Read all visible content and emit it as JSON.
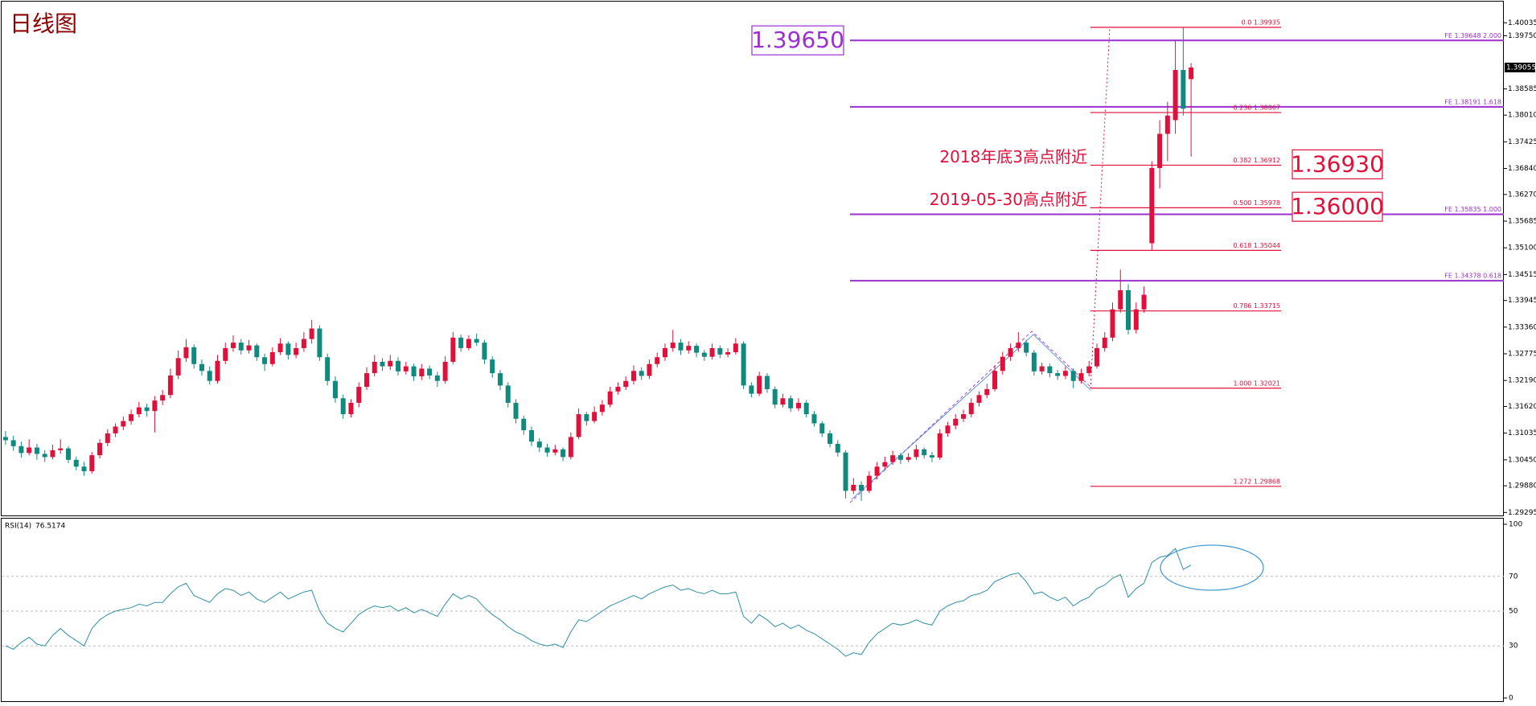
{
  "chart_data": [
    {
      "type": "candlestick",
      "title": "日线图",
      "up_color": "#e0103a",
      "down_color": "#10897e",
      "ylim": [
        1.2923,
        1.405
      ],
      "yticks": [
        1.40035,
        {
          "value": 1.3975,
          "label": "1.39750"
        },
        1.38585,
        {
          "value": 1.3801,
          "label": "1.38010"
        },
        1.37425,
        {
          "value": 1.3684,
          "label": "1.36840"
        },
        {
          "value": 1.3627,
          "label": "1.36270"
        },
        1.35685,
        {
          "value": 1.351,
          "label": "1.35100"
        },
        1.34515,
        1.33945,
        {
          "value": 1.3336,
          "label": "1.33360"
        },
        1.32775,
        {
          "value": 1.3219,
          "label": "1.32190"
        },
        {
          "value": 1.3162,
          "label": "1.31620"
        },
        1.31035,
        {
          "value": 1.3045,
          "label": "1.30450"
        },
        {
          "value": 1.2988,
          "label": "1.29880"
        },
        1.29295
      ],
      "ohlc": [
        [
          1.3095,
          1.3108,
          1.3078,
          1.3088
        ],
        [
          1.3088,
          1.3098,
          1.3065,
          1.3075
        ],
        [
          1.3075,
          1.3085,
          1.305,
          1.306
        ],
        [
          1.306,
          1.309,
          1.3055,
          1.3072
        ],
        [
          1.3072,
          1.308,
          1.3045,
          1.3058
        ],
        [
          1.3058,
          1.3066,
          1.304,
          1.3051
        ],
        [
          1.3051,
          1.3078,
          1.3046,
          1.3066
        ],
        [
          1.3066,
          1.309,
          1.3058,
          1.307
        ],
        [
          1.307,
          1.3075,
          1.3038,
          1.3045
        ],
        [
          1.3045,
          1.3052,
          1.3022,
          1.303
        ],
        [
          1.303,
          1.304,
          1.301,
          1.302
        ],
        [
          1.302,
          1.3062,
          1.3015,
          1.3055
        ],
        [
          1.3055,
          1.309,
          1.3048,
          1.3082
        ],
        [
          1.3082,
          1.3112,
          1.3075,
          1.3103
        ],
        [
          1.3103,
          1.3125,
          1.3095,
          1.3118
        ],
        [
          1.3118,
          1.314,
          1.311,
          1.313
        ],
        [
          1.313,
          1.3155,
          1.3122,
          1.3145
        ],
        [
          1.3145,
          1.3172,
          1.3138,
          1.316
        ],
        [
          1.316,
          1.3168,
          1.314,
          1.3152
        ],
        [
          1.3152,
          1.3185,
          1.3105,
          1.3175
        ],
        [
          1.3175,
          1.3198,
          1.3165,
          1.3187
        ],
        [
          1.3187,
          1.3245,
          1.318,
          1.323
        ],
        [
          1.323,
          1.3285,
          1.3222,
          1.3268
        ],
        [
          1.3268,
          1.331,
          1.326,
          1.3292
        ],
        [
          1.3292,
          1.3298,
          1.3245,
          1.3255
        ],
        [
          1.3255,
          1.3265,
          1.323,
          1.324
        ],
        [
          1.324,
          1.325,
          1.321,
          1.3218
        ],
        [
          1.3218,
          1.3275,
          1.3212,
          1.3262
        ],
        [
          1.3262,
          1.3302,
          1.3255,
          1.329
        ],
        [
          1.329,
          1.3318,
          1.3282,
          1.3302
        ],
        [
          1.3302,
          1.331,
          1.3276,
          1.3285
        ],
        [
          1.3285,
          1.3308,
          1.3278,
          1.3296
        ],
        [
          1.3296,
          1.33,
          1.3262,
          1.327
        ],
        [
          1.327,
          1.3278,
          1.324,
          1.3255
        ],
        [
          1.3255,
          1.3292,
          1.325,
          1.3281
        ],
        [
          1.3281,
          1.3312,
          1.3275,
          1.33
        ],
        [
          1.33,
          1.3305,
          1.3265,
          1.3275
        ],
        [
          1.3275,
          1.3302,
          1.3268,
          1.329
        ],
        [
          1.329,
          1.3325,
          1.3282,
          1.331
        ],
        [
          1.331,
          1.3352,
          1.33,
          1.3333
        ],
        [
          1.3333,
          1.334,
          1.3262,
          1.327
        ],
        [
          1.327,
          1.3278,
          1.3208,
          1.3218
        ],
        [
          1.3218,
          1.3228,
          1.317,
          1.318
        ],
        [
          1.318,
          1.3188,
          1.3135,
          1.3145
        ],
        [
          1.3145,
          1.3178,
          1.3138,
          1.317
        ],
        [
          1.317,
          1.3215,
          1.316,
          1.3205
        ],
        [
          1.3205,
          1.3248,
          1.3198,
          1.3235
        ],
        [
          1.3235,
          1.3275,
          1.3228,
          1.326
        ],
        [
          1.326,
          1.3268,
          1.324,
          1.325
        ],
        [
          1.325,
          1.3275,
          1.3242,
          1.3262
        ],
        [
          1.3262,
          1.327,
          1.323,
          1.3239
        ],
        [
          1.3239,
          1.326,
          1.3232,
          1.325
        ],
        [
          1.325,
          1.3256,
          1.3218,
          1.3228
        ],
        [
          1.3228,
          1.3255,
          1.322,
          1.3245
        ],
        [
          1.3245,
          1.3252,
          1.3222,
          1.323
        ],
        [
          1.323,
          1.3238,
          1.3205,
          1.3218
        ],
        [
          1.3218,
          1.3272,
          1.3212,
          1.326
        ],
        [
          1.326,
          1.3325,
          1.3255,
          1.3313
        ],
        [
          1.3313,
          1.332,
          1.3282,
          1.329
        ],
        [
          1.329,
          1.3318,
          1.3285,
          1.331
        ],
        [
          1.331,
          1.3322,
          1.3295,
          1.3302
        ],
        [
          1.3302,
          1.3308,
          1.3255,
          1.3265
        ],
        [
          1.3265,
          1.3272,
          1.3225,
          1.3235
        ],
        [
          1.3235,
          1.3242,
          1.3198,
          1.3208
        ],
        [
          1.3208,
          1.3215,
          1.316,
          1.317
        ],
        [
          1.317,
          1.3178,
          1.3125,
          1.3135
        ],
        [
          1.3135,
          1.3142,
          1.31,
          1.311
        ],
        [
          1.311,
          1.3118,
          1.3075,
          1.3085
        ],
        [
          1.3085,
          1.3092,
          1.3062,
          1.3072
        ],
        [
          1.3072,
          1.308,
          1.3052,
          1.3061
        ],
        [
          1.3061,
          1.3078,
          1.3055,
          1.3068
        ],
        [
          1.3068,
          1.3072,
          1.3042,
          1.3051
        ],
        [
          1.3051,
          1.3105,
          1.3046,
          1.3095
        ],
        [
          1.3095,
          1.3158,
          1.309,
          1.3145
        ],
        [
          1.3145,
          1.315,
          1.312,
          1.313
        ],
        [
          1.313,
          1.3162,
          1.3125,
          1.315
        ],
        [
          1.315,
          1.3176,
          1.3142,
          1.3166
        ],
        [
          1.3166,
          1.3205,
          1.316,
          1.3195
        ],
        [
          1.3195,
          1.3215,
          1.3188,
          1.3205
        ],
        [
          1.3205,
          1.3228,
          1.3198,
          1.3218
        ],
        [
          1.3218,
          1.3252,
          1.321,
          1.324
        ],
        [
          1.324,
          1.3248,
          1.322,
          1.3229
        ],
        [
          1.3229,
          1.3265,
          1.3222,
          1.3255
        ],
        [
          1.3255,
          1.328,
          1.3248,
          1.327
        ],
        [
          1.327,
          1.33,
          1.3262,
          1.329
        ],
        [
          1.329,
          1.333,
          1.3282,
          1.3302
        ],
        [
          1.3302,
          1.331,
          1.3275,
          1.3285
        ],
        [
          1.3285,
          1.3305,
          1.3278,
          1.3295
        ],
        [
          1.3295,
          1.33,
          1.327,
          1.328
        ],
        [
          1.328,
          1.3286,
          1.3262,
          1.3271
        ],
        [
          1.3271,
          1.33,
          1.3265,
          1.329
        ],
        [
          1.329,
          1.3296,
          1.3268,
          1.3276
        ],
        [
          1.3276,
          1.329,
          1.327,
          1.3281
        ],
        [
          1.3281,
          1.3312,
          1.3276,
          1.33
        ],
        [
          1.33,
          1.3305,
          1.32,
          1.3208
        ],
        [
          1.3208,
          1.3215,
          1.3182,
          1.319
        ],
        [
          1.319,
          1.3238,
          1.3185,
          1.3229
        ],
        [
          1.3229,
          1.3235,
          1.3192,
          1.32
        ],
        [
          1.32,
          1.3206,
          1.3158,
          1.3166
        ],
        [
          1.3166,
          1.319,
          1.316,
          1.318
        ],
        [
          1.318,
          1.3186,
          1.315,
          1.3158
        ],
        [
          1.3158,
          1.318,
          1.3152,
          1.317
        ],
        [
          1.317,
          1.3176,
          1.3138,
          1.3145
        ],
        [
          1.3145,
          1.3152,
          1.3118,
          1.3125
        ],
        [
          1.3125,
          1.313,
          1.3095,
          1.3103
        ],
        [
          1.3103,
          1.311,
          1.3072,
          1.308
        ],
        [
          1.308,
          1.3088,
          1.3052,
          1.3061
        ],
        [
          1.3061,
          1.3066,
          1.296,
          1.2977
        ],
        [
          1.2977,
          1.3005,
          1.297,
          1.299
        ],
        [
          1.299,
          1.2998,
          1.2955,
          1.2977
        ],
        [
          1.2977,
          1.302,
          1.2972,
          1.301
        ],
        [
          1.301,
          1.304,
          1.3002,
          1.303
        ],
        [
          1.303,
          1.3052,
          1.3022,
          1.304
        ],
        [
          1.304,
          1.3065,
          1.3034,
          1.3055
        ],
        [
          1.3055,
          1.306,
          1.3036,
          1.3045
        ],
        [
          1.3045,
          1.306,
          1.304,
          1.3051
        ],
        [
          1.3051,
          1.3078,
          1.3045,
          1.3068
        ],
        [
          1.3068,
          1.3072,
          1.3048,
          1.3055
        ],
        [
          1.3055,
          1.3062,
          1.304,
          1.305
        ],
        [
          1.305,
          1.3112,
          1.3045,
          1.3103
        ],
        [
          1.3103,
          1.3128,
          1.3096,
          1.312
        ],
        [
          1.312,
          1.3145,
          1.3112,
          1.3135
        ],
        [
          1.3135,
          1.3155,
          1.3128,
          1.3145
        ],
        [
          1.3145,
          1.318,
          1.3138,
          1.317
        ],
        [
          1.317,
          1.3195,
          1.3162,
          1.3187
        ],
        [
          1.3187,
          1.3212,
          1.318,
          1.32
        ],
        [
          1.32,
          1.3252,
          1.3195,
          1.324
        ],
        [
          1.324,
          1.3282,
          1.3232,
          1.3271
        ],
        [
          1.3271,
          1.33,
          1.3262,
          1.329
        ],
        [
          1.329,
          1.3325,
          1.3282,
          1.3302
        ],
        [
          1.3302,
          1.3308,
          1.3272,
          1.328
        ],
        [
          1.328,
          1.3286,
          1.323,
          1.3239
        ],
        [
          1.3239,
          1.3258,
          1.3232,
          1.325
        ],
        [
          1.325,
          1.3256,
          1.3226,
          1.3235
        ],
        [
          1.3235,
          1.3242,
          1.322,
          1.3229
        ],
        [
          1.3229,
          1.325,
          1.3222,
          1.324
        ],
        [
          1.324,
          1.3246,
          1.3202,
          1.3218
        ],
        [
          1.3218,
          1.3245,
          1.3212,
          1.3235
        ],
        [
          1.3235,
          1.3262,
          1.3228,
          1.325
        ],
        [
          1.325,
          1.33,
          1.3245,
          1.329
        ],
        [
          1.329,
          1.3325,
          1.3282,
          1.3313
        ],
        [
          1.3313,
          1.339,
          1.3305,
          1.3375
        ],
        [
          1.3375,
          1.3462,
          1.3368,
          1.3417
        ],
        [
          1.3417,
          1.343,
          1.332,
          1.333
        ],
        [
          1.333,
          1.339,
          1.3322,
          1.3375
        ],
        [
          1.3375,
          1.3425,
          1.3368,
          1.3407
        ],
        [
          1.352,
          1.37,
          1.3504,
          1.3685
        ],
        [
          1.3685,
          1.379,
          1.364,
          1.376
        ],
        [
          1.376,
          1.383,
          1.37,
          1.38
        ],
        [
          1.379,
          1.3965,
          1.376,
          1.39
        ],
        [
          1.39,
          1.39935,
          1.38,
          1.3815
        ],
        [
          1.388,
          1.3915,
          1.371,
          1.39055
        ]
      ],
      "fib": {
        "color": "#e0103a",
        "levels": [
          {
            "value": 1.39935,
            "label": "0.0  1.39935"
          },
          {
            "value": 1.38067,
            "label": "0.236  1.38067"
          },
          {
            "value": 1.36912,
            "label": "0.382  1.36912",
            "note": "2018年底3高点附近"
          },
          {
            "value": 1.35978,
            "label": "0.500  1.35978",
            "note": "2019-05-30高点附近"
          },
          {
            "value": 1.35044,
            "label": "0.618  1.35044"
          },
          {
            "value": 1.33715,
            "label": "0.786  1.33715"
          },
          {
            "value": 1.32021,
            "label": "1.000  1.32021"
          },
          {
            "value": 1.29868,
            "label": "1.272  1.29868"
          }
        ]
      },
      "fe": {
        "color": "#9b2fd0",
        "levels": [
          {
            "value": 1.39648,
            "label": "FE 1.39648  2.000"
          },
          {
            "value": 1.38191,
            "label": "FE 1.38191  1.618"
          },
          {
            "value": 1.35835,
            "label": "FE 1.35835  1.000"
          },
          {
            "value": 1.34378,
            "label": "FE 1.34378  0.618"
          }
        ]
      },
      "annotations": [
        {
          "value": 1.3965,
          "label": "1.39650",
          "color": "#9b2fd0"
        },
        {
          "value": 1.3693,
          "label": "1.36930",
          "color": "#e0103a"
        },
        {
          "value": 1.36,
          "label": "1.36000",
          "color": "#e0103a"
        }
      ]
    },
    {
      "type": "line",
      "title": "RSI(14)",
      "color": "#2f8fa3",
      "ylim": [
        0,
        100
      ],
      "yticks": [
        100,
        70,
        50,
        30,
        0
      ],
      "values": [
        30,
        28,
        32,
        35,
        31,
        30,
        36,
        40,
        36,
        33,
        30,
        40,
        45,
        48,
        50,
        51,
        52,
        54,
        53,
        55,
        55,
        60,
        64,
        66,
        59,
        57,
        55,
        60,
        63,
        62,
        59,
        61,
        57,
        55,
        58,
        61,
        57,
        59,
        61,
        62,
        50,
        43,
        40,
        38,
        43,
        48,
        51,
        53,
        52,
        53,
        50,
        52,
        49,
        51,
        49,
        47,
        54,
        60,
        57,
        59,
        57,
        52,
        48,
        45,
        41,
        38,
        36,
        33,
        31,
        30,
        31,
        29,
        38,
        45,
        44,
        47,
        50,
        53,
        55,
        57,
        59,
        57,
        60,
        62,
        64,
        65,
        62,
        63,
        61,
        60,
        62,
        60,
        60,
        61,
        47,
        43,
        48,
        45,
        41,
        43,
        40,
        42,
        39,
        37,
        34,
        31,
        28,
        24,
        26,
        25,
        32,
        37,
        40,
        43,
        42,
        43,
        45,
        43,
        42,
        50,
        53,
        55,
        56,
        59,
        60,
        62,
        67,
        69,
        71,
        72,
        67,
        60,
        61,
        58,
        56,
        58,
        53,
        56,
        58,
        63,
        65,
        69,
        71,
        58,
        63,
        66,
        78,
        81,
        82,
        86,
        74,
        76.5174
      ]
    }
  ]
}
